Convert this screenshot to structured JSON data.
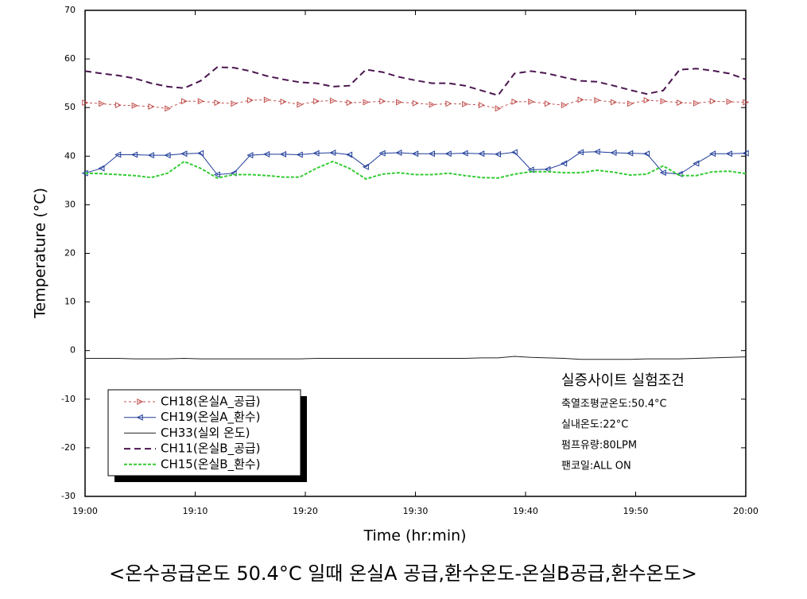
{
  "chart_data": {
    "type": "line",
    "x_label": "Time (hr:min)",
    "y_label": "Temperature (°C)",
    "xlim": [
      0,
      60
    ],
    "ylim": [
      -30,
      70
    ],
    "xticks": [
      {
        "value": 0,
        "label": "19:00"
      },
      {
        "value": 10,
        "label": "19:10"
      },
      {
        "value": 20,
        "label": "19:20"
      },
      {
        "value": 30,
        "label": "19:30"
      },
      {
        "value": 40,
        "label": "19:40"
      },
      {
        "value": 50,
        "label": "19:50"
      },
      {
        "value": 60,
        "label": "20:00"
      }
    ],
    "yticks": [
      -30,
      -20,
      -10,
      0,
      10,
      20,
      30,
      40,
      50,
      60,
      70
    ],
    "grid": false,
    "legend": "lower left",
    "x": [
      0,
      1.5,
      3,
      4.5,
      6,
      7.5,
      9,
      10.5,
      12,
      13.5,
      15,
      16.5,
      18,
      19.5,
      21,
      22.5,
      24,
      25.5,
      27,
      28.5,
      30,
      31.5,
      33,
      34.5,
      36,
      37.5,
      39,
      40.5,
      42,
      43.5,
      45,
      46.5,
      48,
      49.5,
      51,
      52.5,
      54,
      55.5,
      57,
      58.5,
      60
    ],
    "series": [
      {
        "name": "CH18(온실A_공급)",
        "color": "#c0504d",
        "dash": "3 3",
        "width": 1,
        "marker": "triangle-right",
        "values": [
          51,
          50.8,
          50.5,
          50.4,
          50.2,
          49.8,
          51.3,
          51.3,
          51,
          50.8,
          51.5,
          51.6,
          51.2,
          50.6,
          51.3,
          51.4,
          51,
          51.1,
          51.3,
          51.1,
          50.9,
          50.6,
          50.8,
          50.7,
          50.5,
          49.8,
          51.2,
          51.2,
          50.8,
          50.5,
          51.6,
          51.5,
          51.1,
          50.8,
          51.5,
          51.3,
          51,
          50.9,
          51.3,
          51.2,
          51.1
        ]
      },
      {
        "name": "CH19(온실A_환수)",
        "color": "#1f3c99",
        "dash": "none",
        "width": 1,
        "marker": "triangle-left",
        "values": [
          36.5,
          37.5,
          40.3,
          40.3,
          40.2,
          40.2,
          40.5,
          40.6,
          36.2,
          36.5,
          40.2,
          40.4,
          40.4,
          40.3,
          40.6,
          40.7,
          40.3,
          37.8,
          40.6,
          40.7,
          40.5,
          40.5,
          40.5,
          40.6,
          40.5,
          40.4,
          40.8,
          37.2,
          37.3,
          38.5,
          40.8,
          40.9,
          40.7,
          40.6,
          40.5,
          36.6,
          36.3,
          38.5,
          40.5,
          40.5,
          40.6
        ]
      },
      {
        "name": "CH33(실외 온도)",
        "color": "#222222",
        "dash": "none",
        "width": 1,
        "marker": "none",
        "values": [
          -1.6,
          -1.6,
          -1.6,
          -1.7,
          -1.7,
          -1.7,
          -1.6,
          -1.7,
          -1.7,
          -1.7,
          -1.7,
          -1.7,
          -1.7,
          -1.7,
          -1.6,
          -1.6,
          -1.6,
          -1.6,
          -1.6,
          -1.6,
          -1.6,
          -1.6,
          -1.6,
          -1.6,
          -1.5,
          -1.5,
          -1.2,
          -1.4,
          -1.5,
          -1.6,
          -1.8,
          -1.8,
          -1.8,
          -1.8,
          -1.7,
          -1.7,
          -1.7,
          -1.6,
          -1.5,
          -1.4,
          -1.3
        ]
      },
      {
        "name": "CH11(온실B_공급)",
        "color": "#4b1650",
        "dash": "8 5",
        "width": 2,
        "marker": "none",
        "values": [
          57.5,
          57,
          56.6,
          56,
          55,
          54.3,
          54,
          55.5,
          58.3,
          58.2,
          57.5,
          56.5,
          55.8,
          55.2,
          55,
          54.3,
          54.5,
          57.8,
          57.3,
          56.3,
          55.6,
          55,
          55,
          54.5,
          53.5,
          52.5,
          57,
          57.5,
          57,
          56.2,
          55.5,
          55.3,
          54.5,
          53.6,
          52.8,
          53.5,
          57.8,
          58,
          57.6,
          57,
          55.8
        ]
      },
      {
        "name": "CH15(온실B_환수)",
        "color": "#33cc33",
        "dash": "4 2",
        "width": 2,
        "marker": "none",
        "values": [
          36.5,
          36.4,
          36.2,
          36,
          35.6,
          36.5,
          38.9,
          37.5,
          35.5,
          36.2,
          36.2,
          36,
          35.7,
          35.7,
          37.5,
          38.9,
          37.5,
          35.3,
          36.3,
          36.6,
          36.2,
          36.2,
          36.5,
          36,
          35.6,
          35.5,
          36.3,
          36.8,
          36.8,
          36.6,
          36.6,
          37.1,
          36.7,
          36.1,
          36.3,
          38,
          36,
          36,
          36.8,
          36.9,
          36.4
        ]
      }
    ],
    "annotation": {
      "title": "실증사이트 실험조건",
      "lines": [
        "축열조평균온도:50.4°C",
        "실내온도:22°C",
        "펌프유량:80LPM",
        "팬코일:ALL ON"
      ]
    },
    "caption": "<온수공급온도 50.4°C 일때 온실A 공급,환수온도-온실B공급,환수온도>"
  }
}
